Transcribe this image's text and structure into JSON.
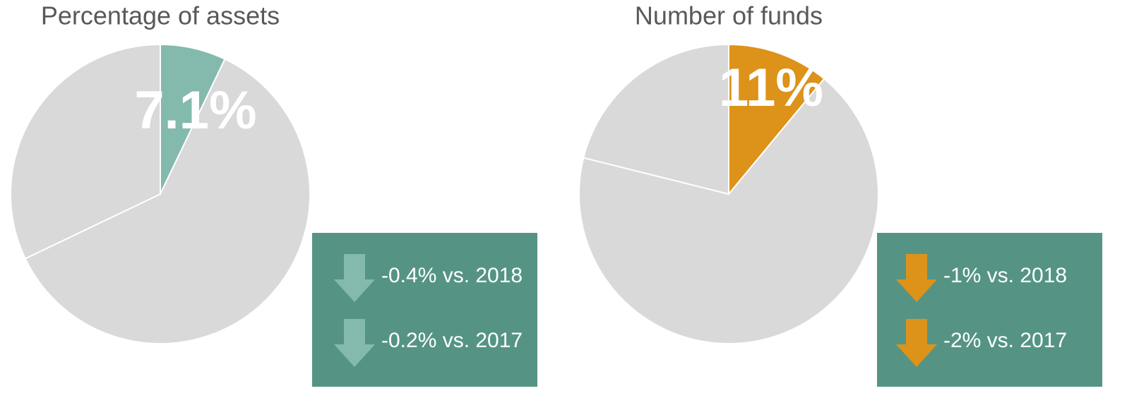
{
  "chart_data": [
    {
      "type": "pie",
      "title": "Percentage of assets",
      "values": [
        7.1,
        60.8,
        32.1
      ],
      "value_labels": [
        "7.1%",
        null,
        null
      ],
      "colors": [
        "#84b9ae",
        "#d9d9d9",
        "#d9d9d9"
      ],
      "annotations": [
        "-0.4% vs. 2018",
        "-0.2% vs. 2017"
      ],
      "arrow_color": "#84b9ae"
    },
    {
      "type": "pie",
      "title": "Number of funds",
      "values": [
        11,
        67.9,
        21.1
      ],
      "value_labels": [
        "11%",
        null,
        null
      ],
      "colors": [
        "#dd9219",
        "#d9d9d9",
        "#d9d9d9"
      ],
      "annotations": [
        "-1% vs. 2018",
        "-2% vs. 2017"
      ],
      "arrow_color": "#dd9219"
    }
  ]
}
